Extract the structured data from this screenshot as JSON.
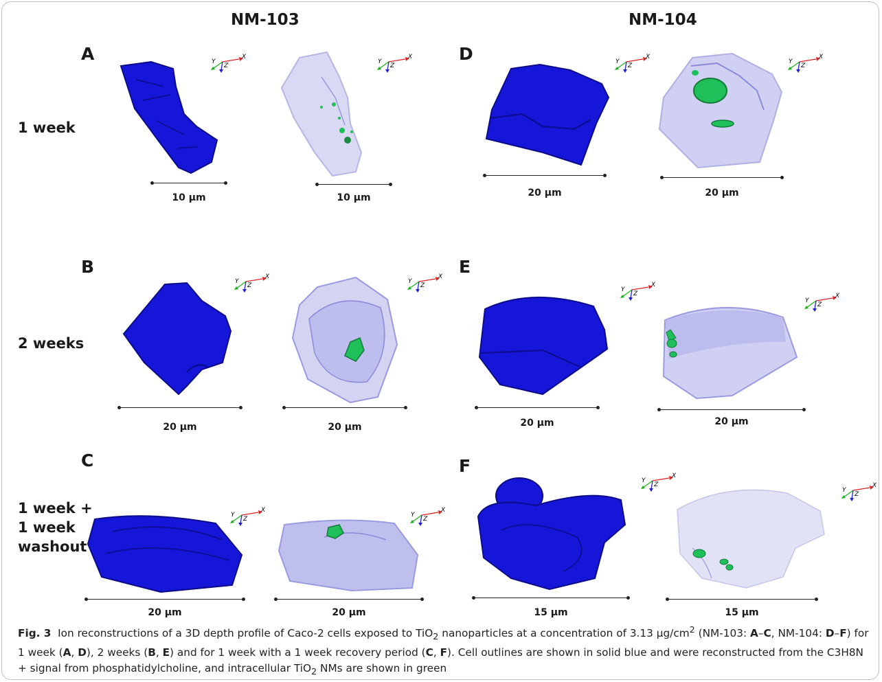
{
  "columns": {
    "left": "NM-103",
    "right": "NM-104"
  },
  "rows": {
    "r1": "1 week",
    "r2": "2 weeks",
    "r3": [
      "1 week +",
      "1 week",
      "washout"
    ]
  },
  "panels": {
    "A": "A",
    "B": "B",
    "C": "C",
    "D": "D",
    "E": "E",
    "F": "F"
  },
  "scalebars": {
    "A1": "10 µm",
    "A2": "10 µm",
    "D1": "20 µm",
    "D2": "20 µm",
    "B1": "20 µm",
    "B2": "20 µm",
    "E1": "20 µm",
    "E2": "20 µm",
    "C1": "20 µm",
    "C2": "20 µm",
    "F1": "15 µm",
    "F2": "15 µm"
  },
  "axis_labels": {
    "x": "X",
    "y": "Y",
    "z": "Z"
  },
  "caption": {
    "fig_label": "Fig. 3",
    "t1": "Ion reconstructions of a 3D depth profile of Caco-2 cells exposed to TiO",
    "sub1": "2",
    "t2": " nanoparticles at a concentration of 3.13 µg/cm",
    "sup1": "2",
    "t3": " (NM-103: ",
    "b1": "A",
    "t4": "–",
    "b2": "C",
    "t5": ", NM-104: ",
    "b3": "D",
    "t6": "–",
    "b4": "F",
    "t7": ") for 1 week (",
    "b5": "A",
    "t8": ", ",
    "b6": "D",
    "t9": "), 2 weeks (",
    "b7": "B",
    "t10": ", ",
    "b8": "E",
    "t11": ") and for 1 week with a 1 week recovery period (",
    "b9": "C",
    "t12": ", ",
    "b10": "F",
    "t13": "). Cell outlines are shown in solid blue and were reconstructed from the C3H8N + signal from phosphatidylcholine, and intracellular TiO",
    "sub2": "2",
    "t14": " NMs are shown in green"
  },
  "colors": {
    "solid": "#1616d8",
    "solid_dark": "#0b0b8a",
    "trans": "#c8c8f2",
    "trans_edge": "#8a8ad8",
    "green": "#1fbf5a"
  }
}
